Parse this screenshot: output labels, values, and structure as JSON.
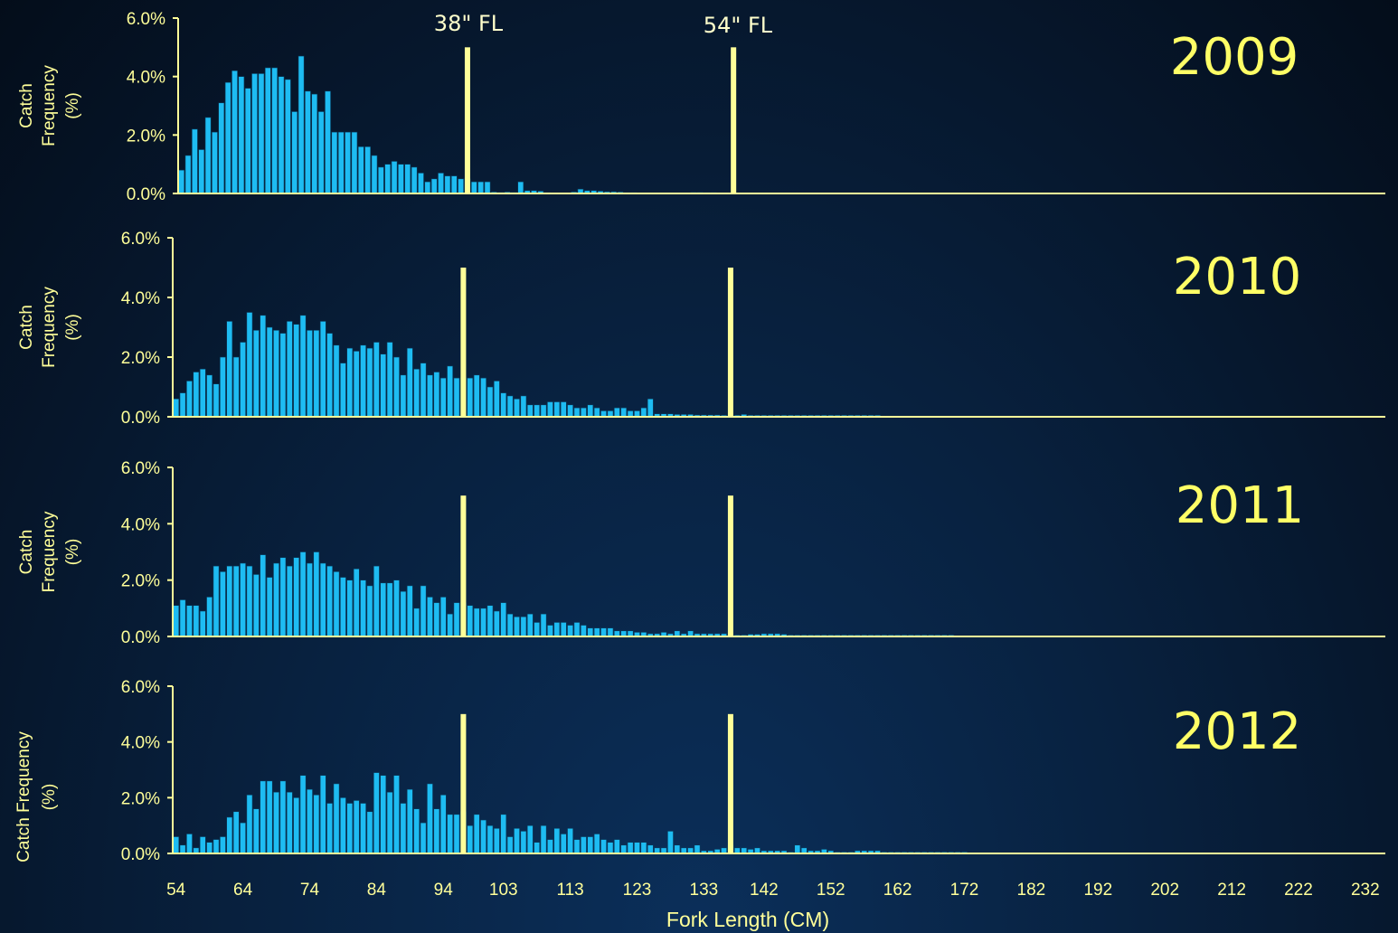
{
  "chart_data": {
    "type": "bar",
    "xlabel": "Fork Length (CM)",
    "ylabel_line1": "Catch",
    "ylabel_line2": "Frequency",
    "ylabel_line3": "(%)",
    "yticks": [
      "0.0%",
      "2.0%",
      "4.0%",
      "6.0%"
    ],
    "ylim": [
      0,
      6
    ],
    "x_ticks": [
      54,
      64,
      74,
      84,
      94,
      103,
      113,
      123,
      133,
      142,
      152,
      162,
      172,
      182,
      192,
      202,
      212,
      222,
      232
    ],
    "bin_width_cm": 1,
    "annotations": [
      "38\" FL",
      "54\" FL"
    ],
    "threshold_lines_cm": [
      97,
      137
    ],
    "colors": {
      "bars": "#1ebcf2",
      "axis": "#ffff99",
      "threshold": "#ffff99"
    },
    "series": [
      {
        "name": "2009",
        "x_start": 54,
        "values": [
          0.8,
          1.3,
          2.2,
          1.5,
          2.6,
          2.1,
          3.1,
          3.8,
          4.2,
          4.0,
          3.6,
          4.1,
          4.1,
          4.3,
          4.3,
          4.0,
          3.9,
          2.8,
          4.7,
          3.5,
          3.4,
          2.8,
          3.5,
          2.1,
          2.1,
          2.1,
          2.1,
          1.6,
          1.6,
          1.3,
          0.9,
          1.0,
          1.1,
          1.0,
          1.0,
          0.9,
          0.7,
          0.4,
          0.5,
          0.7,
          0.6,
          0.6,
          0.5,
          0.5,
          0.4,
          0.4,
          0.4,
          0.05,
          0.04,
          0.05,
          0.04,
          0.4,
          0.1,
          0.1,
          0.08,
          0.03,
          0.02,
          0.02,
          0.02,
          0.05,
          0.15,
          0.1,
          0.1,
          0.08,
          0.06,
          0.06,
          0.05,
          0.03,
          0.03,
          0.02,
          0.02,
          0.02,
          0.02,
          0.02,
          0.02,
          0.02,
          0.02,
          0.04,
          0.04,
          0.03,
          0.03,
          0.02,
          0.02,
          0.02,
          0.02,
          0.02,
          0.02,
          0.02,
          0.02,
          0.02,
          0.02,
          0,
          0,
          0,
          0,
          0,
          0,
          0,
          0,
          0,
          0,
          0,
          0,
          0,
          0,
          0,
          0,
          0,
          0,
          0,
          0,
          0,
          0,
          0,
          0,
          0,
          0,
          0,
          0,
          0,
          0,
          0,
          0,
          0,
          0,
          0,
          0,
          0,
          0,
          0,
          0,
          0,
          0,
          0,
          0,
          0,
          0,
          0,
          0,
          0,
          0,
          0,
          0,
          0,
          0,
          0,
          0,
          0,
          0,
          0,
          0,
          0,
          0,
          0,
          0,
          0,
          0,
          0,
          0,
          0,
          0,
          0,
          0,
          0,
          0,
          0,
          0,
          0,
          0,
          0,
          0,
          0,
          0,
          0,
          0,
          0,
          0,
          0,
          0,
          0,
          0
        ]
      },
      {
        "name": "2010",
        "x_start": 54,
        "values": [
          0.6,
          0.8,
          1.2,
          1.5,
          1.6,
          1.4,
          1.1,
          2.0,
          3.2,
          2.0,
          2.5,
          3.5,
          2.9,
          3.4,
          3.0,
          2.9,
          2.8,
          3.2,
          3.1,
          3.4,
          2.9,
          2.9,
          3.2,
          2.8,
          2.4,
          1.8,
          2.3,
          2.2,
          2.4,
          2.3,
          2.5,
          2.1,
          2.5,
          2.0,
          1.4,
          2.3,
          1.6,
          1.8,
          1.4,
          1.5,
          1.3,
          1.7,
          1.3,
          1.3,
          1.3,
          1.4,
          1.3,
          1.0,
          1.2,
          0.8,
          0.7,
          0.6,
          0.7,
          0.4,
          0.4,
          0.4,
          0.5,
          0.5,
          0.5,
          0.4,
          0.3,
          0.3,
          0.4,
          0.3,
          0.2,
          0.2,
          0.3,
          0.3,
          0.2,
          0.2,
          0.3,
          0.6,
          0.1,
          0.1,
          0.1,
          0.08,
          0.08,
          0.08,
          0.06,
          0.06,
          0.06,
          0.06,
          0.05,
          0.05,
          0.05,
          0.08,
          0.05,
          0.05,
          0.05,
          0.05,
          0.05,
          0.05,
          0.05,
          0.05,
          0.05,
          0.05,
          0.05,
          0.05,
          0.05,
          0.05,
          0.05,
          0.05,
          0.05,
          0.05,
          0.05,
          0.05,
          0,
          0,
          0,
          0,
          0,
          0,
          0,
          0,
          0,
          0,
          0,
          0,
          0,
          0,
          0,
          0,
          0,
          0,
          0,
          0,
          0,
          0,
          0,
          0,
          0,
          0,
          0,
          0,
          0,
          0,
          0,
          0,
          0,
          0,
          0,
          0,
          0,
          0,
          0,
          0,
          0,
          0,
          0,
          0,
          0,
          0,
          0,
          0,
          0,
          0,
          0,
          0,
          0,
          0,
          0,
          0,
          0,
          0,
          0,
          0,
          0,
          0,
          0,
          0,
          0,
          0,
          0,
          0,
          0,
          0,
          0,
          0,
          0,
          0,
          0,
          0,
          0,
          0,
          0,
          0,
          0,
          0,
          0
        ]
      },
      {
        "name": "2011",
        "x_start": 54,
        "values": [
          1.1,
          1.3,
          1.1,
          1.1,
          0.9,
          1.4,
          2.5,
          2.3,
          2.5,
          2.5,
          2.6,
          2.5,
          2.2,
          2.9,
          2.1,
          2.6,
          2.8,
          2.5,
          2.8,
          3.0,
          2.6,
          3.0,
          2.6,
          2.5,
          2.3,
          2.1,
          2.0,
          2.4,
          2.0,
          1.8,
          2.5,
          1.9,
          1.9,
          2.0,
          1.6,
          1.8,
          1.0,
          1.8,
          1.4,
          1.2,
          1.4,
          0.8,
          1.2,
          1.2,
          1.1,
          1.0,
          1.0,
          1.1,
          0.9,
          1.2,
          0.8,
          0.7,
          0.7,
          0.8,
          0.5,
          0.8,
          0.4,
          0.5,
          0.5,
          0.4,
          0.5,
          0.4,
          0.3,
          0.3,
          0.3,
          0.3,
          0.2,
          0.2,
          0.2,
          0.15,
          0.15,
          0.1,
          0.1,
          0.15,
          0.1,
          0.2,
          0.1,
          0.2,
          0.1,
          0.1,
          0.1,
          0.1,
          0.1,
          0.1,
          0.05,
          0.05,
          0.08,
          0.08,
          0.1,
          0.1,
          0.1,
          0.08,
          0.05,
          0.05,
          0.05,
          0.05,
          0.05,
          0.05,
          0.05,
          0.05,
          0.05,
          0.05,
          0.05,
          0.05,
          0.05,
          0.05,
          0.05,
          0.05,
          0.05,
          0.05,
          0.05,
          0.05,
          0.05,
          0.05,
          0.05,
          0.05,
          0.05,
          0,
          0,
          0,
          0,
          0,
          0,
          0,
          0,
          0,
          0,
          0,
          0,
          0,
          0,
          0,
          0,
          0,
          0,
          0,
          0,
          0,
          0,
          0,
          0,
          0,
          0,
          0,
          0,
          0,
          0,
          0,
          0,
          0,
          0,
          0,
          0,
          0,
          0,
          0,
          0,
          0,
          0,
          0,
          0,
          0,
          0,
          0,
          0,
          0,
          0,
          0,
          0,
          0,
          0,
          0,
          0,
          0,
          0,
          0,
          0,
          0,
          0,
          0,
          0,
          0,
          0,
          0,
          0,
          0,
          0,
          0
        ]
      },
      {
        "name": "2012",
        "x_start": 54,
        "values": [
          0.6,
          0.3,
          0.7,
          0.2,
          0.6,
          0.4,
          0.5,
          0.6,
          1.3,
          1.5,
          1.1,
          2.1,
          1.6,
          2.6,
          2.6,
          2.2,
          2.6,
          2.2,
          2.0,
          2.8,
          2.3,
          2.1,
          2.8,
          1.8,
          2.5,
          2.0,
          1.8,
          1.9,
          1.8,
          1.5,
          2.9,
          2.8,
          2.2,
          2.8,
          1.8,
          2.3,
          1.6,
          1.1,
          2.5,
          1.6,
          2.1,
          1.4,
          1.4,
          1.5,
          1.0,
          1.4,
          1.2,
          1.0,
          0.9,
          1.4,
          0.6,
          0.9,
          0.8,
          1.0,
          0.4,
          1.0,
          0.5,
          0.9,
          0.7,
          0.9,
          0.5,
          0.6,
          0.6,
          0.7,
          0.5,
          0.4,
          0.5,
          0.3,
          0.4,
          0.4,
          0.4,
          0.3,
          0.2,
          0.2,
          0.8,
          0.3,
          0.2,
          0.2,
          0.3,
          0.1,
          0.1,
          0.15,
          0.2,
          0.3,
          0.2,
          0.2,
          0.15,
          0.2,
          0.1,
          0.1,
          0.1,
          0.1,
          0.05,
          0.3,
          0.2,
          0.1,
          0.1,
          0.15,
          0.1,
          0.05,
          0.05,
          0.05,
          0.1,
          0.1,
          0.1,
          0.1,
          0.05,
          0.05,
          0.05,
          0.05,
          0.05,
          0.05,
          0.05,
          0.05,
          0.05,
          0.05,
          0.05,
          0.05,
          0.05,
          0,
          0,
          0,
          0,
          0,
          0,
          0,
          0,
          0,
          0,
          0,
          0,
          0,
          0,
          0,
          0,
          0,
          0,
          0,
          0,
          0,
          0,
          0,
          0,
          0,
          0,
          0,
          0,
          0,
          0,
          0,
          0,
          0,
          0,
          0,
          0,
          0,
          0,
          0,
          0,
          0,
          0,
          0,
          0,
          0,
          0,
          0,
          0,
          0,
          0,
          0,
          0,
          0,
          0,
          0,
          0,
          0,
          0,
          0,
          0,
          0,
          0,
          0,
          0,
          0,
          0,
          0,
          0
        ]
      }
    ]
  }
}
